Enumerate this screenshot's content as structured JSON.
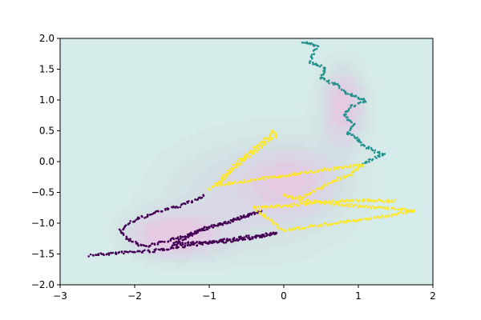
{
  "chart_data": {
    "type": "scatter",
    "title": "",
    "xlabel": "",
    "ylabel": "",
    "xlim": [
      -3,
      2
    ],
    "ylim": [
      -2,
      2
    ],
    "grid": false,
    "legend": "none",
    "x_ticks": [
      -3,
      -2,
      -1,
      0,
      1,
      2
    ],
    "x_tick_labels": [
      "−3",
      "−2",
      "−1",
      "0",
      "1",
      "2"
    ],
    "y_ticks": [
      -2.0,
      -1.5,
      -1.0,
      -0.5,
      0.0,
      0.5,
      1.0,
      1.5,
      2.0
    ],
    "y_tick_labels": [
      "−2.0",
      "−1.5",
      "−1.0",
      "−0.5",
      "0.0",
      "0.5",
      "1.0",
      "1.5",
      "2.0"
    ],
    "background": {
      "kind": "filled-contour",
      "colors": [
        "#d6ecea",
        "#d6e8e6",
        "#d4e3e4",
        "#d4dfe4",
        "#d8d8e6",
        "#dcd3e5",
        "#e0cde3",
        "#e6c9e2"
      ],
      "line_color": "#9aa7b8"
    },
    "series": [
      {
        "color": "#440154",
        "style": "points",
        "path": [
          [
            -2.6,
            -1.52
          ],
          [
            -2.1,
            -1.47
          ],
          [
            -1.75,
            -1.45
          ],
          [
            -1.4,
            -1.38
          ],
          [
            -1.1,
            -1.33
          ],
          [
            -0.8,
            -1.28
          ],
          [
            -0.6,
            -1.24
          ],
          [
            -0.4,
            -1.21
          ],
          [
            -0.1,
            -1.16
          ],
          [
            -0.45,
            -1.25
          ],
          [
            -0.8,
            -1.3
          ],
          [
            -1.15,
            -1.32
          ],
          [
            -1.5,
            -1.34
          ],
          [
            -1.25,
            -1.2
          ],
          [
            -1.05,
            -1.08
          ],
          [
            -0.75,
            -0.98
          ],
          [
            -0.5,
            -0.88
          ],
          [
            -0.3,
            -0.8
          ],
          [
            -0.55,
            -0.9
          ],
          [
            -0.85,
            -1.02
          ],
          [
            -1.2,
            -1.15
          ],
          [
            -1.55,
            -1.28
          ],
          [
            -1.85,
            -1.38
          ],
          [
            -2.05,
            -1.3
          ],
          [
            -2.2,
            -1.12
          ],
          [
            -2.0,
            -0.95
          ],
          [
            -1.7,
            -0.82
          ],
          [
            -1.4,
            -0.72
          ],
          [
            -1.2,
            -0.63
          ],
          [
            -1.05,
            -0.55
          ]
        ]
      },
      {
        "color": "#21918c",
        "style": "points",
        "path": [
          [
            0.25,
            1.95
          ],
          [
            0.45,
            1.88
          ],
          [
            0.4,
            1.75
          ],
          [
            0.35,
            1.62
          ],
          [
            0.55,
            1.52
          ],
          [
            0.5,
            1.35
          ],
          [
            0.7,
            1.25
          ],
          [
            0.85,
            1.1
          ],
          [
            1.0,
            1.05
          ],
          [
            1.1,
            0.98
          ],
          [
            0.9,
            0.9
          ],
          [
            0.8,
            0.75
          ],
          [
            0.95,
            0.6
          ],
          [
            0.85,
            0.48
          ],
          [
            1.0,
            0.35
          ],
          [
            1.05,
            0.28
          ],
          [
            1.2,
            0.18
          ],
          [
            1.35,
            0.12
          ],
          [
            1.2,
            0.05
          ],
          [
            1.05,
            -0.05
          ]
        ]
      },
      {
        "color": "#fde725",
        "style": "points",
        "path": [
          [
            -1.0,
            -0.45
          ],
          [
            -0.85,
            -0.3
          ],
          [
            -0.7,
            -0.1
          ],
          [
            -0.55,
            0.05
          ],
          [
            -0.4,
            0.2
          ],
          [
            -0.25,
            0.35
          ],
          [
            -0.15,
            0.5
          ],
          [
            -0.1,
            0.42
          ],
          [
            -0.3,
            0.25
          ],
          [
            -0.5,
            0.05
          ],
          [
            -0.7,
            -0.15
          ],
          [
            -0.9,
            -0.38
          ],
          [
            1.05,
            -0.05
          ],
          [
            0.9,
            -0.2
          ],
          [
            0.7,
            -0.3
          ],
          [
            0.5,
            -0.42
          ],
          [
            0.3,
            -0.55
          ],
          [
            0.15,
            -0.6
          ],
          [
            0.0,
            -0.55
          ],
          [
            0.2,
            -0.62
          ],
          [
            0.6,
            -0.68
          ],
          [
            1.0,
            -0.72
          ],
          [
            1.4,
            -0.76
          ],
          [
            1.75,
            -0.8
          ],
          [
            1.3,
            -0.9
          ],
          [
            0.8,
            -0.98
          ],
          [
            0.3,
            -1.06
          ],
          [
            0.0,
            -1.12
          ],
          [
            -0.4,
            -0.75
          ],
          [
            0.0,
            -0.72
          ],
          [
            0.5,
            -0.66
          ],
          [
            1.0,
            -0.63
          ],
          [
            1.5,
            -0.64
          ]
        ]
      }
    ]
  }
}
